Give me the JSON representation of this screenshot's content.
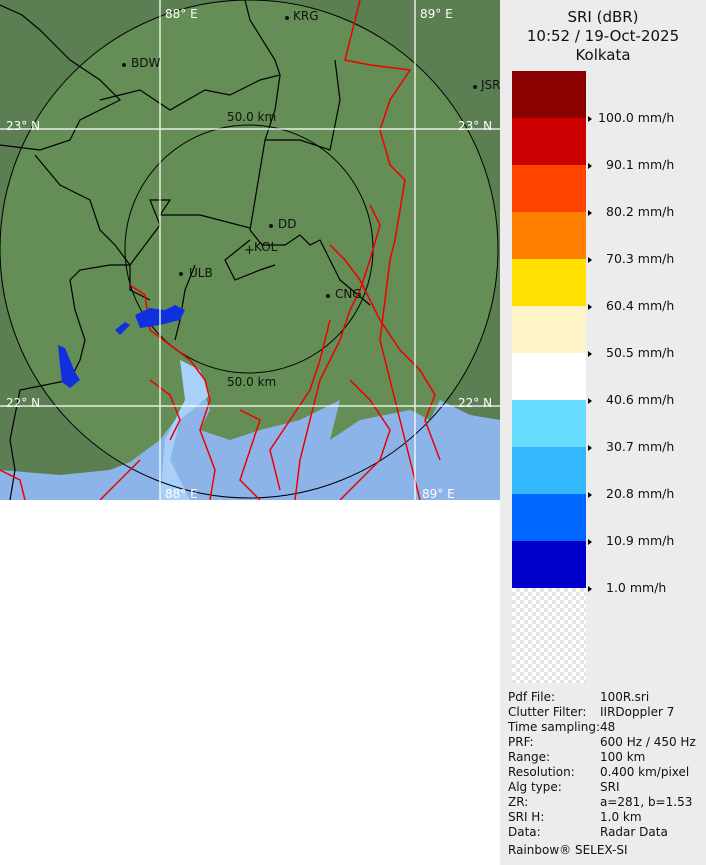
{
  "legend": {
    "title": "SRI (dBR)",
    "datetime": "10:52 / 19-Oct-2025",
    "site": "Kolkata",
    "colors": [
      "#8b0000",
      "#cc0000",
      "#ff4400",
      "#ff7f00",
      "#ffe000",
      "#fff3c8",
      "#ffffff",
      "#66ddff",
      "#33b8ff",
      "#0066ff",
      "#0000cc",
      "transparent"
    ],
    "labels": [
      "100.0 mm/h",
      "90.1 mm/h",
      "80.2 mm/h",
      "70.3 mm/h",
      "60.4 mm/h",
      "50.5 mm/h",
      "40.6 mm/h",
      "30.7 mm/h",
      "20.8 mm/h",
      "10.9 mm/h",
      "1.0 mm/h"
    ]
  },
  "map": {
    "lon_labels": [
      "88° E",
      "89° E"
    ],
    "lat_labels": [
      "23° N",
      "22° N"
    ],
    "range_rings": [
      "50.0 km",
      "50.0 km"
    ],
    "cities": [
      "KRG",
      "BDW",
      "JSR",
      "DD",
      "KOL",
      "ULB",
      "CNG"
    ]
  },
  "info": [
    {
      "key": "Pdf File:",
      "value": "100R.sri"
    },
    {
      "key": "Clutter Filter:",
      "value": "IIRDoppler 7"
    },
    {
      "key": "Time sampling:",
      "value": "48"
    },
    {
      "key": "PRF:",
      "value": "600 Hz / 450 Hz"
    },
    {
      "key": "Range:",
      "value": "100 km"
    },
    {
      "key": "Resolution:",
      "value": "0.400 km/pixel"
    },
    {
      "key": "Alg type:",
      "value": "SRI"
    },
    {
      "key": "ZR:",
      "value": "a=281, b=1.53"
    },
    {
      "key": "SRI H:",
      "value": "1.0 km"
    },
    {
      "key": "Data:",
      "value": "Radar Data"
    }
  ],
  "footer": "Rainbow® SELEX-SI"
}
